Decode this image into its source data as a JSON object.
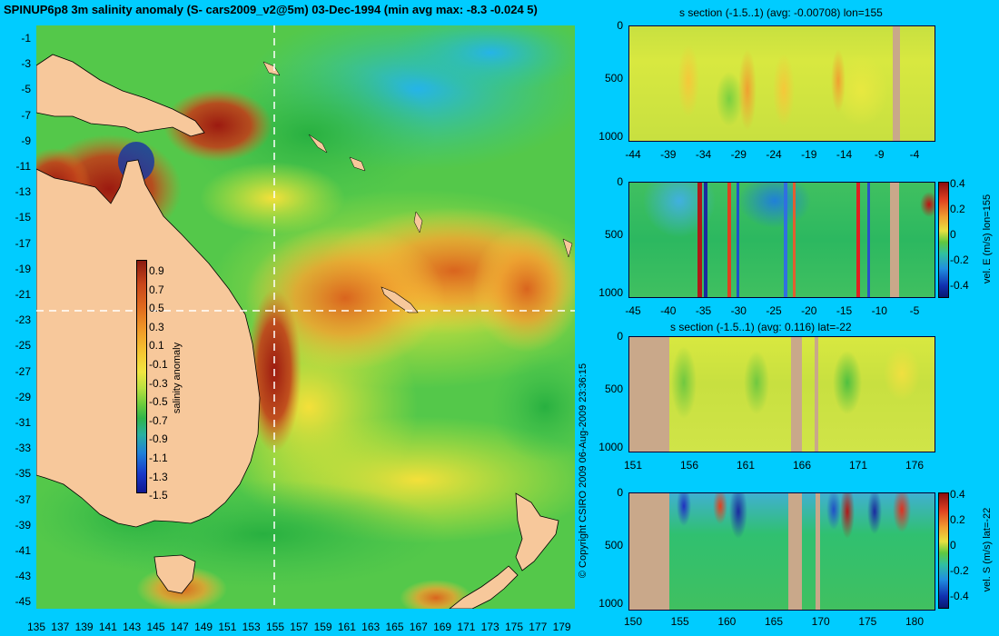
{
  "title": "SPINUP6p8 3m salinity anomaly (S- cars2009_v2@5m) 03-Dec-1994 (min avg max: -8.3 -0.024 5)",
  "copyright": "© Copyright CSIRO 2009   06-Aug-2009 23:36:15",
  "colors": {
    "background": "#00ccff",
    "land": "#f7c89b",
    "section_land": "#c9a88a"
  },
  "map": {
    "lat_ticks": [
      "-1",
      "-3",
      "-5",
      "-7",
      "-9",
      "-11",
      "-13",
      "-15",
      "-17",
      "-19",
      "-21",
      "-23",
      "-25",
      "-27",
      "-29",
      "-31",
      "-33",
      "-35",
      "-37",
      "-39",
      "-41",
      "-43",
      "-45"
    ],
    "lon_ticks": [
      "135",
      "137",
      "139",
      "141",
      "143",
      "145",
      "147",
      "149",
      "151",
      "153",
      "155",
      "157",
      "159",
      "161",
      "163",
      "165",
      "167",
      "169",
      "171",
      "173",
      "175",
      "177",
      "179"
    ],
    "colorbar": {
      "label": "salinity anomaly",
      "ticks": [
        "0.9",
        "0.7",
        "0.5",
        "0.3",
        "0.1",
        "-0.1",
        "-0.3",
        "-0.5",
        "-0.7",
        "-0.9",
        "-1.1",
        "-1.3",
        "-1.5"
      ]
    }
  },
  "panels": [
    {
      "title": "s section (-1.5..1) (avg: -0.00708) lon=155",
      "depth_ticks": [
        "0",
        "500",
        "1000"
      ],
      "x_ticks": [
        "-44",
        "-39",
        "-34",
        "-29",
        "-24",
        "-19",
        "-14",
        "-9",
        "-4"
      ],
      "colorbar": null
    },
    {
      "title": "",
      "depth_ticks": [
        "0",
        "500",
        "1000"
      ],
      "x_ticks": [
        "-45",
        "-40",
        "-35",
        "-30",
        "-25",
        "-20",
        "-15",
        "-10",
        "-5"
      ],
      "colorbar": {
        "label": "vel. E (m/s) lon=155",
        "ticks": [
          "0.4",
          "0.2",
          "0",
          "-0.2",
          "-0.4"
        ]
      }
    },
    {
      "title": "s section (-1.5..1) (avg: 0.116) lat=-22",
      "depth_ticks": [
        "0",
        "500",
        "1000"
      ],
      "x_ticks": [
        "151",
        "156",
        "161",
        "166",
        "171",
        "176"
      ],
      "colorbar": null
    },
    {
      "title": "",
      "depth_ticks": [
        "0",
        "500",
        "1000"
      ],
      "x_ticks": [
        "150",
        "155",
        "160",
        "165",
        "170",
        "175",
        "180"
      ],
      "colorbar": {
        "label": "vel. S (m/s) lat=-22",
        "ticks": [
          "0.4",
          "0.2",
          "0",
          "-0.2",
          "-0.4"
        ]
      }
    }
  ]
}
